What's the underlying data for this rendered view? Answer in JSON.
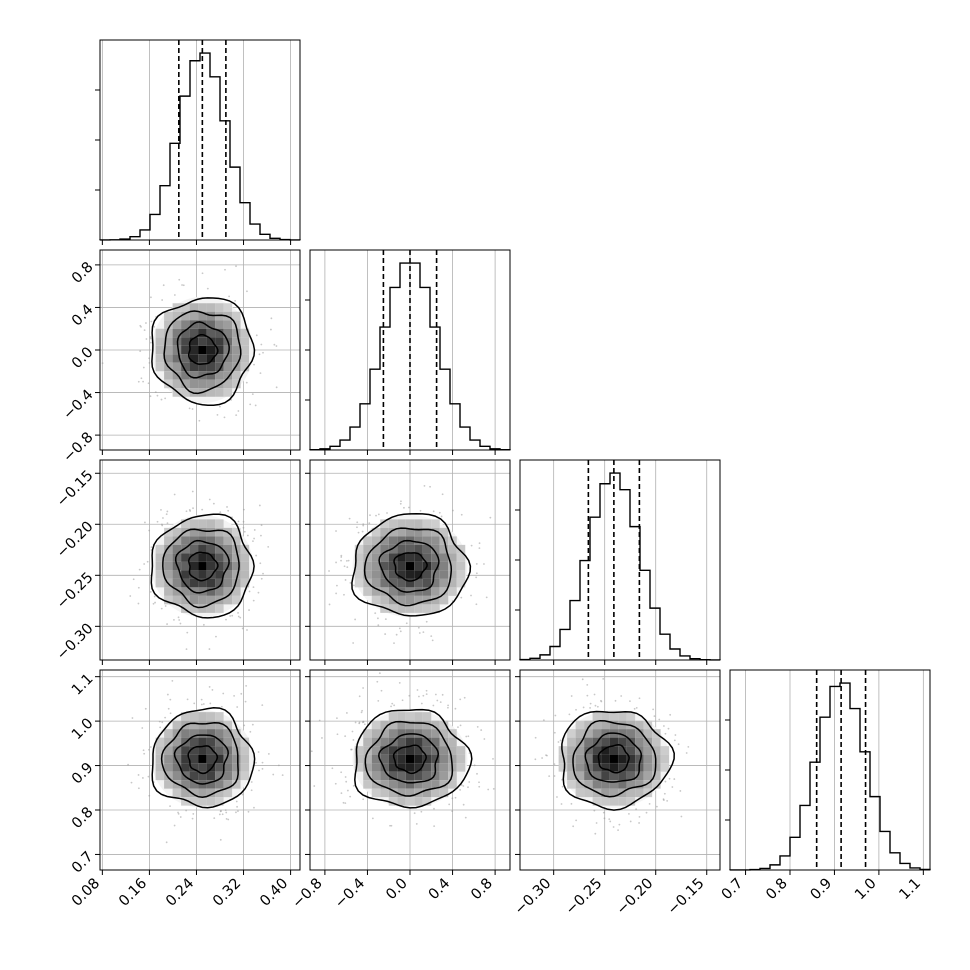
{
  "chart_data": {
    "type": "corner",
    "n_params": 4,
    "grid": true,
    "quantile_lines": "dashed",
    "params": [
      {
        "range": [
          0.076,
          0.416
        ],
        "ticks": [
          "0.08",
          "0.16",
          "0.24",
          "0.32",
          "0.40"
        ],
        "tick_values": [
          0.08,
          0.16,
          0.24,
          0.32,
          0.4
        ],
        "mean": 0.25,
        "sd": 0.04,
        "quantiles": [
          0.21,
          0.25,
          0.29
        ]
      },
      {
        "range": [
          -0.94,
          0.94
        ],
        "ticks": [
          "-0.8",
          "-0.4",
          "0.0",
          "0.4",
          "0.8"
        ],
        "tick_values": [
          -0.8,
          -0.4,
          0.0,
          0.4,
          0.8
        ],
        "mean": 0.0,
        "sd": 0.25,
        "quantiles": [
          -0.25,
          0.0,
          0.25
        ]
      },
      {
        "range": [
          -0.333,
          -0.137
        ],
        "ticks": [
          "-0.30",
          "-0.25",
          "-0.20",
          "-0.15"
        ],
        "tick_values": [
          -0.3,
          -0.25,
          -0.2,
          -0.15
        ],
        "mean": -0.241,
        "sd": 0.025,
        "quantiles": [
          -0.266,
          -0.241,
          -0.216
        ]
      },
      {
        "range": [
          0.665,
          1.115
        ],
        "ticks": [
          "0.7",
          "0.8",
          "0.9",
          "1.0",
          "1.1"
        ],
        "tick_values": [
          0.7,
          0.8,
          0.9,
          1.0,
          1.1
        ],
        "mean": 0.915,
        "sd": 0.055,
        "quantiles": [
          0.86,
          0.915,
          0.97
        ]
      }
    ],
    "contour_levels_sigma": [
      0.5,
      1.0,
      1.5,
      2.0
    ],
    "title": "",
    "xlabel": "",
    "ylabel": ""
  }
}
